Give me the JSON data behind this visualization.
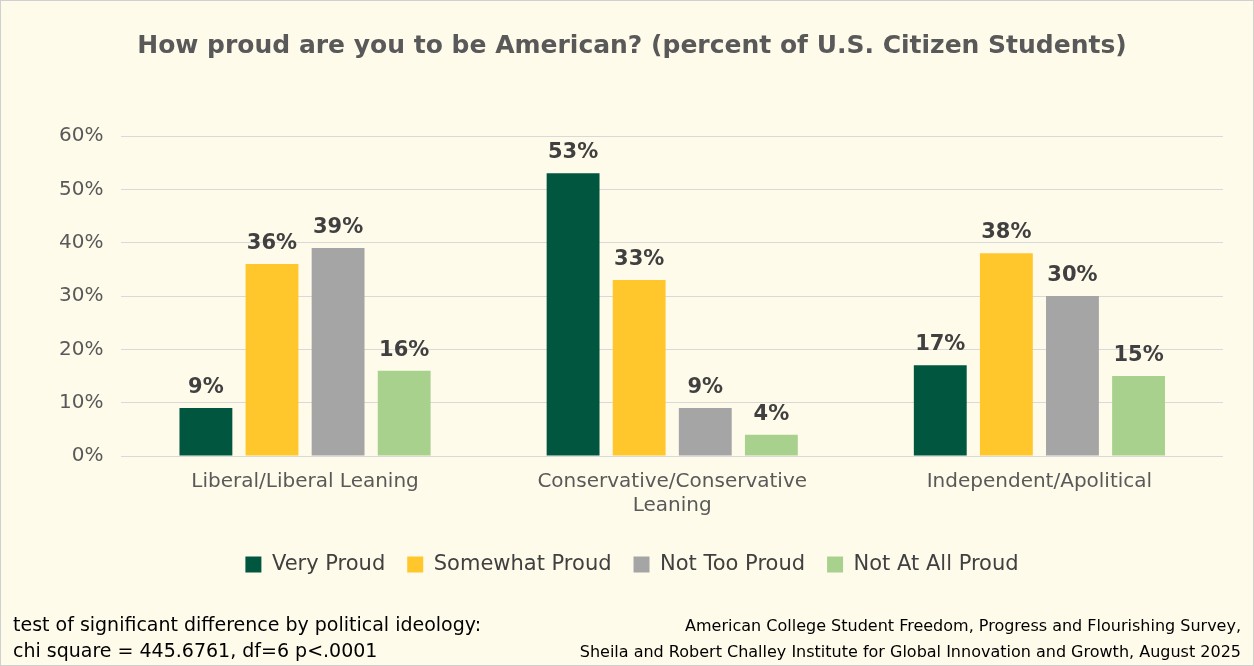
{
  "chart_data": {
    "type": "bar",
    "title": "How proud are you to be American? (percent of U.S. Citizen Students)",
    "categories": [
      "Liberal/Liberal Leaning",
      "Conservative/Conservative Leaning",
      "Independent/Apolitical"
    ],
    "series": [
      {
        "name": "Very Proud",
        "color": "#00563f",
        "values": [
          9,
          53,
          17
        ],
        "value_labels": [
          "9%",
          "53%",
          "17%"
        ]
      },
      {
        "name": "Somewhat Proud",
        "color": "#ffc72c",
        "values": [
          36,
          33,
          38
        ],
        "value_labels": [
          "36%",
          "33%",
          "38%"
        ]
      },
      {
        "name": "Not Too Proud",
        "color": "#a5a5a5",
        "values": [
          39,
          9,
          30
        ],
        "value_labels": [
          "39%",
          "9%",
          "30%"
        ]
      },
      {
        "name": "Not At All Proud",
        "color": "#a9d18e",
        "values": [
          16,
          4,
          15
        ],
        "value_labels": [
          "16%",
          "4%",
          "15%"
        ]
      }
    ],
    "ylim": [
      0,
      60
    ],
    "yticks": [
      {
        "value": 0,
        "label": "0%"
      },
      {
        "value": 10,
        "label": "10%"
      },
      {
        "value": 20,
        "label": "20%"
      },
      {
        "value": 30,
        "label": "30%"
      },
      {
        "value": 40,
        "label": "40%"
      },
      {
        "value": 50,
        "label": "50%"
      },
      {
        "value": 60,
        "label": "60%"
      }
    ],
    "grid": "y",
    "legend": "bottom",
    "annotations": [
      "test of significant difference by political ideology:\nchi square = 445.6761, df=6 p<.0001",
      "American College Student Freedom, Progress and Flourishing Survey,\nSheila and Robert Challey Institute for Global Innovation and Growth, August 2025"
    ]
  }
}
